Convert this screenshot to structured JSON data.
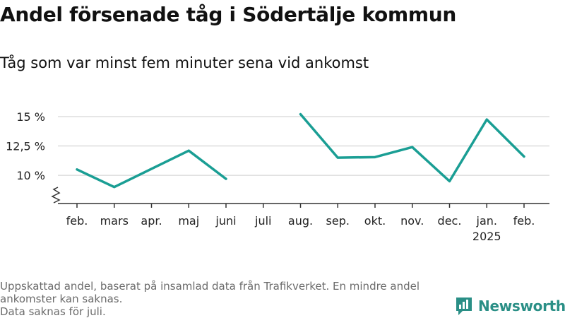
{
  "header": {
    "title": "Andel försenade tåg i Södertälje kommun",
    "subtitle": "Tåg som var minst fem minuter sena vid ankomst"
  },
  "footer": {
    "note_line1": "Uppskattad andel, baserat på insamlad data från Trafikverket. En mindre andel ankomster kan saknas.",
    "note_line2": "Data saknas för juli.",
    "brand": "Newsworthy",
    "brand_color": "#2a8f86"
  },
  "chart_data": {
    "type": "line",
    "title": "Andel försenade tåg i Södertälje kommun",
    "subtitle": "Tåg som var minst fem minuter sena vid ankomst",
    "categories": [
      "feb.",
      "mars",
      "apr.",
      "maj",
      "juni",
      "juli",
      "aug.",
      "sep.",
      "okt.",
      "nov.",
      "dec.",
      "jan.",
      "feb."
    ],
    "year_labels": [
      "",
      "",
      "",
      "",
      "",
      "",
      "",
      "",
      "",
      "",
      "",
      "2025",
      ""
    ],
    "series": [
      {
        "color": "#1a9e94",
        "values": [
          10.5,
          9.0,
          10.55,
          12.1,
          9.7,
          null,
          15.2,
          11.5,
          11.55,
          12.4,
          9.5,
          14.75,
          11.6
        ]
      }
    ],
    "ylim": [
      7.6,
      15.9
    ],
    "yticks": [
      10,
      12.5,
      15
    ],
    "ytick_labels": [
      "10 %",
      "12,5 %",
      "15 %"
    ],
    "axis_break": true,
    "grid": true
  }
}
